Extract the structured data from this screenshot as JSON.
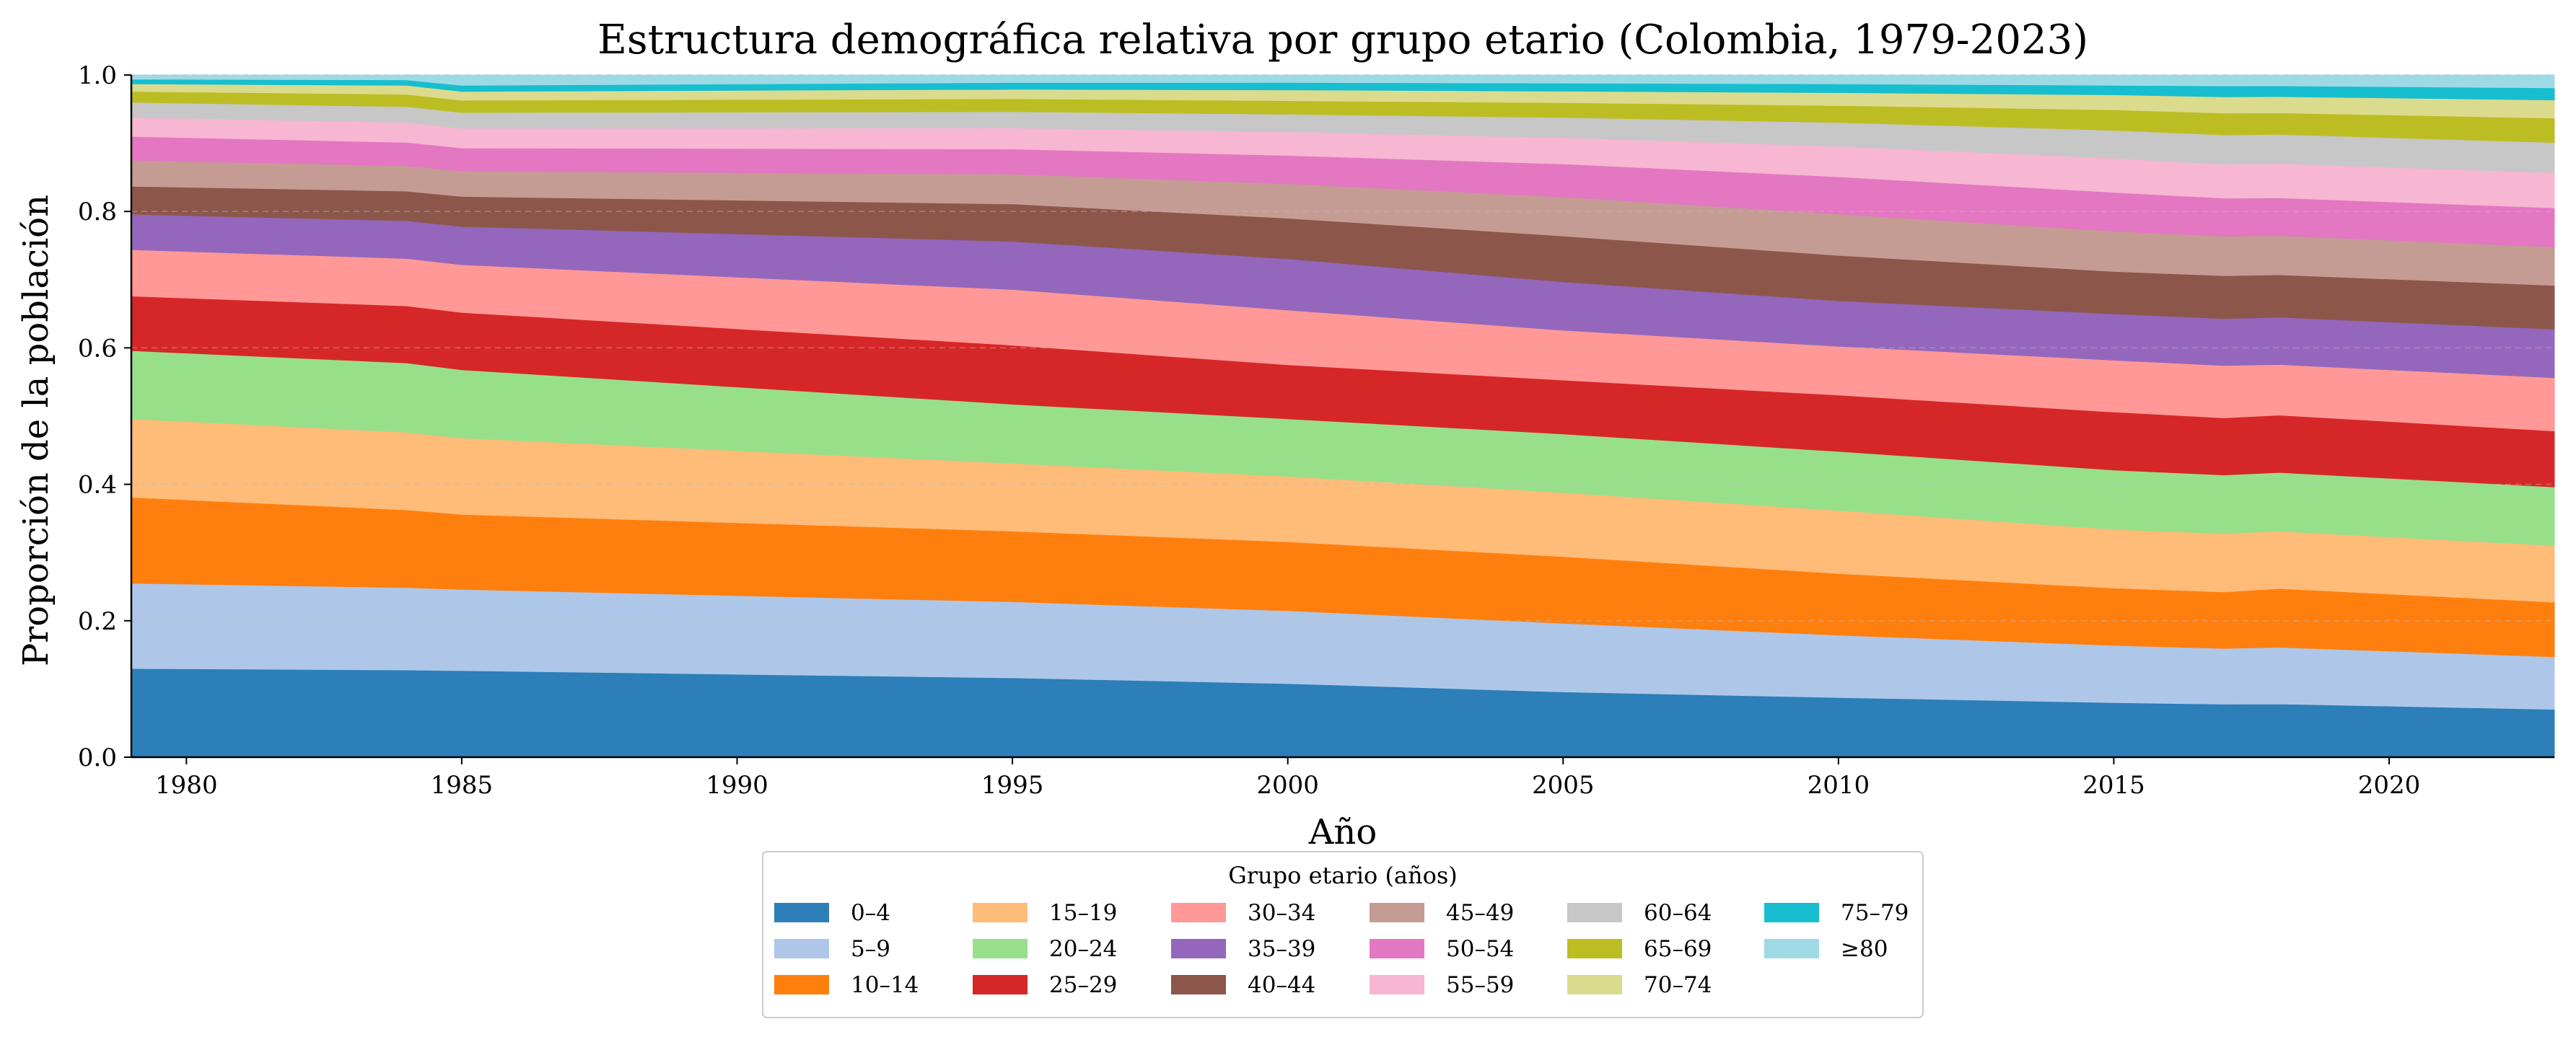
{
  "chart_data": {
    "type": "area",
    "stacked": true,
    "normalized": true,
    "title": "Estructura demográfica relativa por grupo etario (Colombia, 1979-2023)",
    "xlabel": "Año",
    "ylabel": "Proporción de la población",
    "xlim": [
      1979,
      2023
    ],
    "ylim": [
      0,
      1.0
    ],
    "xticks": [
      1980,
      1985,
      1990,
      1995,
      2000,
      2005,
      2010,
      2015,
      2020
    ],
    "yticks": [
      0.0,
      0.2,
      0.4,
      0.6,
      0.8,
      1.0
    ],
    "ytick_labels": [
      "0.0",
      "0.2",
      "0.4",
      "0.6",
      "0.8",
      "1.0"
    ],
    "grid": "horizontal dashed",
    "legend": {
      "title": "Grupo etario (años)",
      "placement": "bottom-center",
      "columns": 6
    },
    "x": [
      1979,
      1984,
      1985,
      1995,
      2000,
      2005,
      2010,
      2015,
      2017,
      2018,
      2023
    ],
    "series": [
      {
        "name": "0–4",
        "color": "#2c7fb8",
        "values": [
          0.13,
          0.127,
          0.127,
          0.117,
          0.109,
          0.097,
          0.088,
          0.08,
          0.078,
          0.079,
          0.071
        ]
      },
      {
        "name": "5–9",
        "color": "#aec7e8",
        "values": [
          0.125,
          0.12,
          0.119,
          0.112,
          0.108,
          0.102,
          0.092,
          0.084,
          0.082,
          0.084,
          0.078
        ]
      },
      {
        "name": "10–14",
        "color": "#ff7f0e",
        "values": [
          0.126,
          0.113,
          0.11,
          0.104,
          0.102,
          0.099,
          0.091,
          0.084,
          0.083,
          0.087,
          0.081
        ]
      },
      {
        "name": "15–19",
        "color": "#ffbb78",
        "values": [
          0.115,
          0.113,
          0.112,
          0.1,
          0.097,
          0.095,
          0.093,
          0.086,
          0.086,
          0.085,
          0.084
        ]
      },
      {
        "name": "20–24",
        "color": "#98df8a",
        "values": [
          0.1,
          0.101,
          0.1,
          0.087,
          0.085,
          0.087,
          0.087,
          0.087,
          0.086,
          0.087,
          0.087
        ]
      },
      {
        "name": "25–29",
        "color": "#d62728",
        "values": [
          0.08,
          0.083,
          0.084,
          0.087,
          0.08,
          0.08,
          0.083,
          0.085,
          0.084,
          0.085,
          0.083
        ]
      },
      {
        "name": "30–34",
        "color": "#ff9896",
        "values": [
          0.068,
          0.069,
          0.07,
          0.082,
          0.081,
          0.074,
          0.072,
          0.076,
          0.077,
          0.075,
          0.079
        ]
      },
      {
        "name": "35–39",
        "color": "#9467bd",
        "values": [
          0.052,
          0.055,
          0.056,
          0.071,
          0.076,
          0.072,
          0.067,
          0.068,
          0.069,
          0.07,
          0.072
        ]
      },
      {
        "name": "40–44",
        "color": "#8c564b",
        "values": [
          0.041,
          0.043,
          0.044,
          0.055,
          0.06,
          0.068,
          0.067,
          0.062,
          0.063,
          0.063,
          0.065
        ]
      },
      {
        "name": "45–49",
        "color": "#c49c94",
        "values": [
          0.038,
          0.037,
          0.037,
          0.044,
          0.051,
          0.058,
          0.061,
          0.059,
          0.058,
          0.058,
          0.057
        ]
      },
      {
        "name": "50–54",
        "color": "#e377c2",
        "values": [
          0.035,
          0.034,
          0.034,
          0.037,
          0.042,
          0.049,
          0.055,
          0.057,
          0.056,
          0.056,
          0.058
        ]
      },
      {
        "name": "55–59",
        "color": "#f7b6d2",
        "values": [
          0.028,
          0.029,
          0.029,
          0.031,
          0.035,
          0.039,
          0.045,
          0.05,
          0.05,
          0.051,
          0.052
        ]
      },
      {
        "name": "60–64",
        "color": "#c7c7c7",
        "values": [
          0.022,
          0.023,
          0.023,
          0.024,
          0.026,
          0.03,
          0.035,
          0.041,
          0.043,
          0.043,
          0.045
        ]
      },
      {
        "name": "65–69",
        "color": "#bcbd22",
        "values": [
          0.016,
          0.018,
          0.018,
          0.019,
          0.02,
          0.022,
          0.025,
          0.03,
          0.032,
          0.032,
          0.036
        ]
      },
      {
        "name": "70–74",
        "color": "#dbdb8d",
        "values": [
          0.011,
          0.013,
          0.013,
          0.014,
          0.016,
          0.017,
          0.019,
          0.022,
          0.024,
          0.024,
          0.027
        ]
      },
      {
        "name": "75–79",
        "color": "#17becf",
        "values": [
          0.007,
          0.008,
          0.009,
          0.01,
          0.011,
          0.012,
          0.013,
          0.014,
          0.016,
          0.016,
          0.018
        ]
      },
      {
        "name": "≥80",
        "color": "#9edae5",
        "values": [
          0.006,
          0.007,
          0.015,
          0.011,
          0.011,
          0.012,
          0.013,
          0.015,
          0.016,
          0.016,
          0.019
        ]
      }
    ]
  }
}
